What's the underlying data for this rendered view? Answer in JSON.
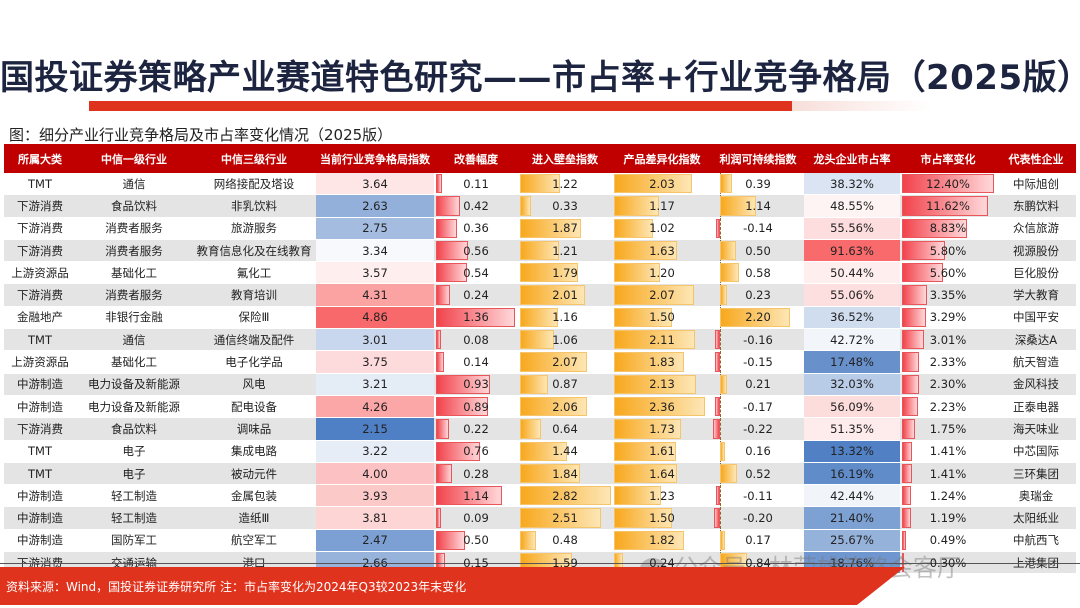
{
  "title": "国投证券策略产业赛道特色研究——市占率+行业竞争格局（2025版）",
  "caption": "图：细分产业行业竞争格局及市占率变化情况（2025版）",
  "table": {
    "headers": [
      "所属大类",
      "中信一级行业",
      "中信三级行业",
      "当前行业竞争格局指数",
      "改善幅度",
      "进入壁垒指数",
      "产品差异化指数",
      "利润可持续指数",
      "龙头企业市占率",
      "市占率变化",
      "代表性企业"
    ],
    "rows": [
      {
        "cat": "TMT",
        "l1": "通信",
        "l3": "网络接配及塔设",
        "comp": "3.64",
        "impr": "0.11",
        "barrier": "1.22",
        "diff": "2.03",
        "profit": "0.39",
        "share": "38.32%",
        "change": "12.40%",
        "company": "中际旭创"
      },
      {
        "cat": "下游消费",
        "l1": "食品饮料",
        "l3": "非乳饮料",
        "comp": "2.63",
        "impr": "0.42",
        "barrier": "0.33",
        "diff": "1.17",
        "profit": "1.14",
        "share": "48.55%",
        "change": "11.62%",
        "company": "东鹏饮料"
      },
      {
        "cat": "下游消费",
        "l1": "消费者服务",
        "l3": "旅游服务",
        "comp": "2.75",
        "impr": "0.36",
        "barrier": "1.87",
        "diff": "1.02",
        "profit": "-0.14",
        "share": "55.56%",
        "change": "8.83%",
        "company": "众信旅游"
      },
      {
        "cat": "下游消费",
        "l1": "消费者服务",
        "l3": "教育信息化及在线教育",
        "comp": "3.34",
        "impr": "0.56",
        "barrier": "1.21",
        "diff": "1.63",
        "profit": "0.50",
        "share": "91.63%",
        "change": "5.80%",
        "company": "视源股份"
      },
      {
        "cat": "上游资源品",
        "l1": "基础化工",
        "l3": "氟化工",
        "comp": "3.57",
        "impr": "0.54",
        "barrier": "1.79",
        "diff": "1.20",
        "profit": "0.58",
        "share": "50.44%",
        "change": "5.60%",
        "company": "巨化股份"
      },
      {
        "cat": "下游消费",
        "l1": "消费者服务",
        "l3": "教育培训",
        "comp": "4.31",
        "impr": "0.24",
        "barrier": "2.01",
        "diff": "2.07",
        "profit": "0.23",
        "share": "55.06%",
        "change": "3.35%",
        "company": "学大教育"
      },
      {
        "cat": "金融地产",
        "l1": "非银行金融",
        "l3": "保险Ⅲ",
        "comp": "4.86",
        "impr": "1.36",
        "barrier": "1.16",
        "diff": "1.50",
        "profit": "2.20",
        "share": "36.52%",
        "change": "3.29%",
        "company": "中国平安"
      },
      {
        "cat": "TMT",
        "l1": "通信",
        "l3": "通信终端及配件",
        "comp": "3.01",
        "impr": "0.08",
        "barrier": "1.06",
        "diff": "2.11",
        "profit": "-0.16",
        "share": "42.72%",
        "change": "3.01%",
        "company": "深桑达A"
      },
      {
        "cat": "上游资源品",
        "l1": "基础化工",
        "l3": "电子化学品",
        "comp": "3.75",
        "impr": "0.14",
        "barrier": "2.07",
        "diff": "1.83",
        "profit": "-0.15",
        "share": "17.48%",
        "change": "2.33%",
        "company": "航天智造"
      },
      {
        "cat": "中游制造",
        "l1": "电力设备及新能源",
        "l3": "风电",
        "comp": "3.21",
        "impr": "0.93",
        "barrier": "0.87",
        "diff": "2.13",
        "profit": "0.21",
        "share": "32.03%",
        "change": "2.30%",
        "company": "金风科技"
      },
      {
        "cat": "中游制造",
        "l1": "电力设备及新能源",
        "l3": "配电设备",
        "comp": "4.26",
        "impr": "0.89",
        "barrier": "2.06",
        "diff": "2.36",
        "profit": "-0.17",
        "share": "56.09%",
        "change": "2.23%",
        "company": "正泰电器"
      },
      {
        "cat": "下游消费",
        "l1": "食品饮料",
        "l3": "调味品",
        "comp": "2.15",
        "impr": "0.22",
        "barrier": "0.64",
        "diff": "1.73",
        "profit": "-0.22",
        "share": "51.35%",
        "change": "1.75%",
        "company": "海天味业"
      },
      {
        "cat": "TMT",
        "l1": "电子",
        "l3": "集成电路",
        "comp": "3.22",
        "impr": "0.76",
        "barrier": "1.44",
        "diff": "1.61",
        "profit": "0.16",
        "share": "13.32%",
        "change": "1.41%",
        "company": "中芯国际"
      },
      {
        "cat": "TMT",
        "l1": "电子",
        "l3": "被动元件",
        "comp": "4.00",
        "impr": "0.28",
        "barrier": "1.84",
        "diff": "1.64",
        "profit": "0.52",
        "share": "16.19%",
        "change": "1.41%",
        "company": "三环集团"
      },
      {
        "cat": "中游制造",
        "l1": "轻工制造",
        "l3": "金属包装",
        "comp": "3.93",
        "impr": "1.14",
        "barrier": "2.82",
        "diff": "1.23",
        "profit": "-0.11",
        "share": "42.44%",
        "change": "1.24%",
        "company": "奥瑞金"
      },
      {
        "cat": "中游制造",
        "l1": "轻工制造",
        "l3": "造纸Ⅲ",
        "comp": "3.81",
        "impr": "0.09",
        "barrier": "2.51",
        "diff": "1.50",
        "profit": "-0.20",
        "share": "21.40%",
        "change": "1.19%",
        "company": "太阳纸业"
      },
      {
        "cat": "中游制造",
        "l1": "国防军工",
        "l3": "航空军工",
        "comp": "2.47",
        "impr": "0.50",
        "barrier": "0.48",
        "diff": "1.82",
        "profit": "0.17",
        "share": "25.67%",
        "change": "0.49%",
        "company": "中航西飞"
      },
      {
        "cat": "下游消费",
        "l1": "交通运输",
        "l3": "港口",
        "comp": "2.66",
        "impr": "0.15",
        "barrier": "1.59",
        "diff": "0.24",
        "profit": "0.84",
        "share": "18.76%",
        "change": "0.30%",
        "company": "上港集团"
      }
    ]
  },
  "colors": {
    "header_bg": "#c00000",
    "accent_red": "#e0331e",
    "title_color": "#1c2440",
    "bar_red": "#f2434c",
    "bar_orange": "#f8a81d",
    "heat_low": "#4f7fc4",
    "heat_mid": "#ffffff",
    "heat_high": "#f8696b"
  },
  "footer": {
    "source": "资料来源：Wind，国投证券证券研究所  注：市占率变化为2024年Q3较2023年末变化"
  },
  "watermark": "公众号 · 林荣雄策略会客厅"
}
